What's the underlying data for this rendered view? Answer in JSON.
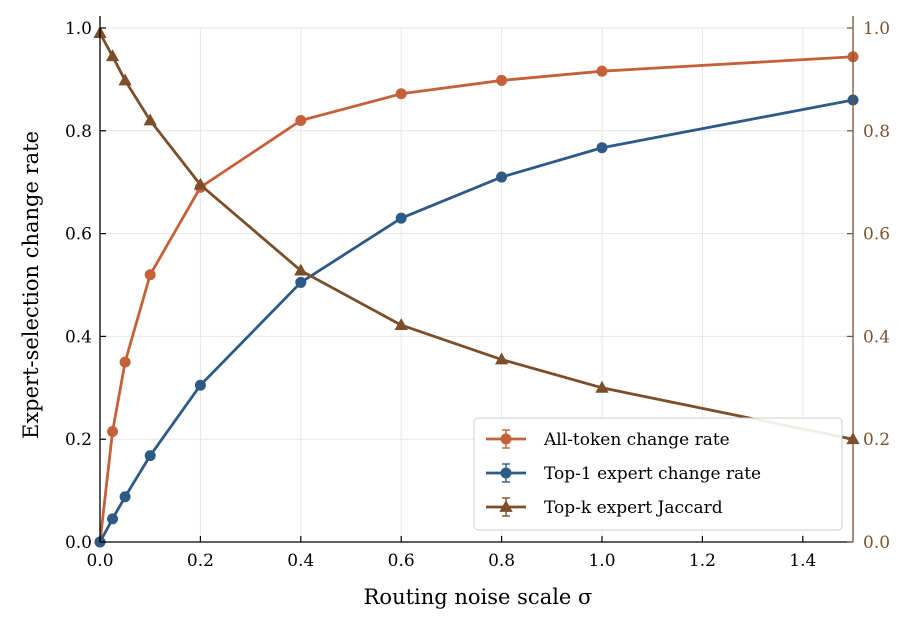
{
  "chart_data": {
    "type": "line",
    "xlabel": "Routing noise scale σ",
    "ylabel": "Expert-selection change rate",
    "xlim": [
      0,
      1.5
    ],
    "ylim": [
      0,
      1.0
    ],
    "ylim_right": [
      0,
      1.0
    ],
    "x_ticks": [
      "0.0",
      "0.2",
      "0.4",
      "0.6",
      "0.8",
      "1.0",
      "1.2",
      "1.4"
    ],
    "y_ticks": [
      "0.0",
      "0.2",
      "0.4",
      "0.6",
      "0.8",
      "1.0"
    ],
    "y_ticks_right": [
      "0.0",
      "0.2",
      "0.4",
      "0.6",
      "0.8",
      "1.0"
    ],
    "grid": true,
    "legend_position": "lower-right",
    "series": [
      {
        "name": "All-token change rate",
        "color": "#c4603a",
        "marker": "circle",
        "axis": "left",
        "x": [
          0.0,
          0.025,
          0.05,
          0.1,
          0.2,
          0.4,
          0.6,
          0.8,
          1.0,
          1.5
        ],
        "values": [
          0.0,
          0.215,
          0.35,
          0.52,
          0.69,
          0.82,
          0.872,
          0.898,
          0.916,
          0.944
        ]
      },
      {
        "name": "Top-1 expert change rate",
        "color": "#2e5a87",
        "marker": "circle",
        "axis": "left",
        "x": [
          0.0,
          0.025,
          0.05,
          0.1,
          0.2,
          0.4,
          0.6,
          0.8,
          1.0,
          1.5
        ],
        "values": [
          0.0,
          0.045,
          0.088,
          0.168,
          0.305,
          0.505,
          0.63,
          0.71,
          0.767,
          0.86
        ]
      },
      {
        "name": "Top-k expert Jaccard",
        "color": "#7a4f2a",
        "marker": "triangle",
        "axis": "right",
        "x": [
          0.0,
          0.025,
          0.05,
          0.1,
          0.2,
          0.4,
          0.6,
          0.8,
          1.0,
          1.5
        ],
        "values": [
          0.99,
          0.945,
          0.898,
          0.82,
          0.695,
          0.528,
          0.422,
          0.355,
          0.3,
          0.2
        ]
      }
    ]
  }
}
